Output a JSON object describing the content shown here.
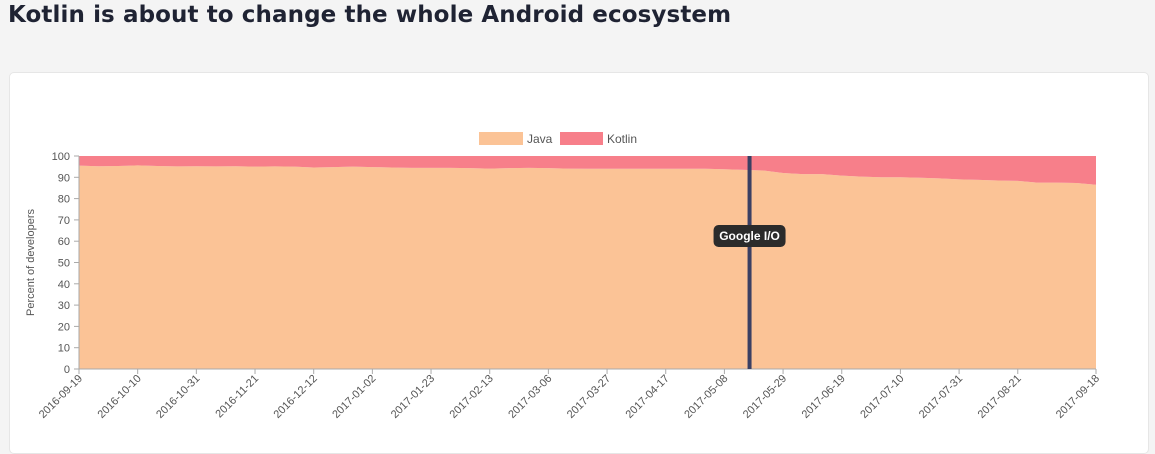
{
  "page": {
    "title": "Kotlin is about to change the whole Android ecosystem"
  },
  "colors": {
    "java": "#fbc396",
    "kotlin": "#f77f8a",
    "annotation_line": "#3a3f63",
    "annotation_bg": "#2b2b2b"
  },
  "chart_data": {
    "type": "area",
    "stacked": true,
    "ylabel": "Percent of developers",
    "xlabel": "",
    "ylim": [
      0,
      100
    ],
    "yticks": [
      0,
      10,
      20,
      30,
      40,
      50,
      60,
      70,
      80,
      90,
      100
    ],
    "legend_position": "top-center",
    "grid": false,
    "x_tick_labels": [
      "2016-09-19",
      "2016-10-10",
      "2016-10-31",
      "2016-11-21",
      "2016-12-12",
      "2017-01-02",
      "2017-01-23",
      "2017-02-13",
      "2017-03-06",
      "2017-03-27",
      "2017-04-17",
      "2017-05-08",
      "2017-05-29",
      "2017-06-19",
      "2017-07-10",
      "2017-07-31",
      "2017-08-21",
      "2017-09-18"
    ],
    "x": [
      "2016-09-19",
      "2016-09-26",
      "2016-10-03",
      "2016-10-10",
      "2016-10-17",
      "2016-10-24",
      "2016-10-31",
      "2016-11-07",
      "2016-11-14",
      "2016-11-21",
      "2016-11-28",
      "2016-12-05",
      "2016-12-12",
      "2016-12-19",
      "2016-12-26",
      "2017-01-02",
      "2017-01-09",
      "2017-01-16",
      "2017-01-23",
      "2017-01-30",
      "2017-02-06",
      "2017-02-13",
      "2017-02-20",
      "2017-02-27",
      "2017-03-06",
      "2017-03-13",
      "2017-03-20",
      "2017-03-27",
      "2017-04-03",
      "2017-04-10",
      "2017-04-17",
      "2017-04-24",
      "2017-05-01",
      "2017-05-08",
      "2017-05-15",
      "2017-05-22",
      "2017-05-29",
      "2017-06-05",
      "2017-06-12",
      "2017-06-19",
      "2017-06-26",
      "2017-07-03",
      "2017-07-10",
      "2017-07-17",
      "2017-07-24",
      "2017-07-31",
      "2017-08-07",
      "2017-08-14",
      "2017-08-21",
      "2017-08-28",
      "2017-09-04",
      "2017-09-11",
      "2017-09-18"
    ],
    "series": [
      {
        "name": "Java",
        "values": [
          95.5,
          95.2,
          95.3,
          95.6,
          95.3,
          95.1,
          95.2,
          95.1,
          95.2,
          95.0,
          95.1,
          95.0,
          94.6,
          94.8,
          95.0,
          94.8,
          94.6,
          94.4,
          94.4,
          94.4,
          94.3,
          94.1,
          94.3,
          94.4,
          94.3,
          94.1,
          94.0,
          94.0,
          94.0,
          94.0,
          94.0,
          94.0,
          94.0,
          93.8,
          93.5,
          93.2,
          92.0,
          91.5,
          91.5,
          90.8,
          90.3,
          90.0,
          90.0,
          89.8,
          89.5,
          89.0,
          88.8,
          88.5,
          88.3,
          87.5,
          87.5,
          87.3,
          86.5
        ]
      },
      {
        "name": "Kotlin",
        "values": [
          4.5,
          4.8,
          4.7,
          4.4,
          4.7,
          4.9,
          4.8,
          4.9,
          4.8,
          5.0,
          4.9,
          5.0,
          5.4,
          5.2,
          5.0,
          5.2,
          5.4,
          5.6,
          5.6,
          5.6,
          5.7,
          5.9,
          5.7,
          5.6,
          5.7,
          5.9,
          6.0,
          6.0,
          6.0,
          6.0,
          6.0,
          6.0,
          6.0,
          6.2,
          6.5,
          6.8,
          8.0,
          8.5,
          8.5,
          9.2,
          9.7,
          10.0,
          10.0,
          10.2,
          10.5,
          11.0,
          11.2,
          11.5,
          11.7,
          12.5,
          12.5,
          12.7,
          13.5
        ]
      }
    ],
    "annotations": [
      {
        "x": "2017-05-17",
        "label": "Google I/O"
      }
    ]
  }
}
